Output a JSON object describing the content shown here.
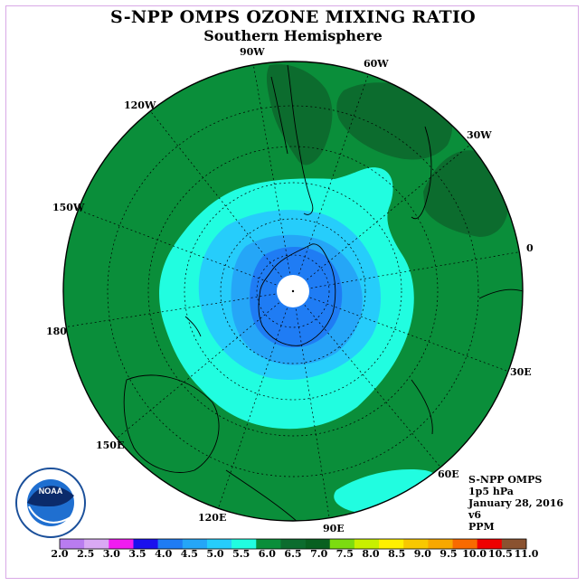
{
  "title": "S-NPP OMPS OZONE MIXING RATIO",
  "subtitle": "Southern Hemisphere",
  "longitude_labels": {
    "lon_90w": "90W",
    "lon_60w": "60W",
    "lon_30w": "30W",
    "lon_0": "0",
    "lon_30e": "30E",
    "lon_60e": "60E",
    "lon_90e": "90E",
    "lon_120e": "120E",
    "lon_150e": "150E",
    "lon_180": "180",
    "lon_150w": "150W",
    "lon_120w": "120W"
  },
  "info": {
    "instrument": "S-NPP OMPS",
    "level": "1p5 hPa",
    "date": "January 28, 2016",
    "version": "v6",
    "units": "PPM"
  },
  "logo_text": "NOAA",
  "colorbar": {
    "ticks": [
      "2.0",
      "2.5",
      "3.0",
      "3.5",
      "4.0",
      "4.5",
      "5.0",
      "5.5",
      "6.0",
      "6.5",
      "7.0",
      "7.5",
      "8.0",
      "8.5",
      "9.0",
      "9.5",
      "10.0",
      "10.5",
      "11.0"
    ],
    "colors": [
      "#b97cf0",
      "#d9a9f4",
      "#f01cf0",
      "#1a10ee",
      "#1f7cf4",
      "#25a6f7",
      "#26cdfb",
      "#21fde0",
      "#0a8e3a",
      "#0c6c2e",
      "#086020",
      "#7cdc10",
      "#c8f000",
      "#fff000",
      "#f8c800",
      "#f8a800",
      "#f86a00",
      "#ef0000",
      "#8a5230"
    ],
    "shown_range": [
      2.0,
      11.0
    ]
  }
}
